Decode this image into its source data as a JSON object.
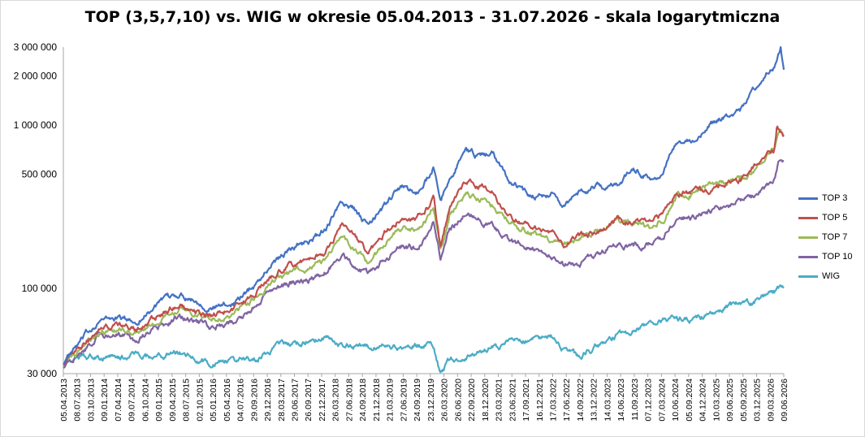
{
  "chart_data": {
    "type": "line",
    "title": "TOP (3,5,7,10) vs. WIG w okresie 05.04.2013 - 31.07.2026 - skala logarytmiczna",
    "xlabel": "",
    "ylabel": "",
    "y_scale": "log",
    "ylim": [
      30000,
      3000000
    ],
    "y_ticks": [
      30000,
      100000,
      500000,
      1000000,
      2000000,
      3000000
    ],
    "y_tick_labels": [
      "30 000",
      "100 000",
      "500 000",
      "1 000 000",
      "2 000 000",
      "3 000 000"
    ],
    "x_tick_labels": [
      "05.04.2013",
      "08.07.2013",
      "03.10.2013",
      "09.01.2014",
      "07.04.2014",
      "09.07.2014",
      "06.10.2014",
      "09.01.2015",
      "09.04.2015",
      "08.07.2015",
      "02.10.2015",
      "05.01.2016",
      "05.04.2016",
      "04.07.2016",
      "29.09.2016",
      "29.12.2016",
      "28.03.2017",
      "29.06.2017",
      "26.09.2017",
      "22.12.2017",
      "26.03.2018",
      "27.06.2018",
      "24.09.2018",
      "21.12.2018",
      "21.03.2019",
      "27.06.2019",
      "24.09.2019",
      "23.12.2019",
      "26.03.2020",
      "26.06.2020",
      "22.09.2020",
      "18.12.2020",
      "23.03.2021",
      "23.06.2021",
      "17.09.2021",
      "16.12.2021",
      "17.03.2022",
      "17.06.2022",
      "14.09.2022",
      "13.12.2022",
      "14.03.2023",
      "14.06.2023",
      "11.09.2023",
      "07.12.2023",
      "07.03.2024",
      "10.06.2024",
      "05.09.2024",
      "04.12.2024",
      "10.03.2025",
      "09.06.2025",
      "05.09.2025",
      "03.12.2025",
      "09.03.2026",
      "09.06.2026"
    ],
    "x_start": "05.04.2013",
    "x_end": "31.07.2026",
    "grid": false,
    "legend_position": "right",
    "series": [
      {
        "name": "TOP 3",
        "color": "#4472c4",
        "x": [
          2013.26,
          2013.6,
          2013.9,
          2014.3,
          2014.6,
          2015.0,
          2015.4,
          2015.6,
          2016.0,
          2016.4,
          2016.8,
          2017.2,
          2017.5,
          2017.9,
          2018.1,
          2018.4,
          2018.6,
          2018.9,
          2019.2,
          2019.5,
          2019.8,
          2020.0,
          2020.1,
          2020.23,
          2020.4,
          2020.7,
          2020.9,
          2021.2,
          2021.5,
          2021.9,
          2022.3,
          2022.5,
          2022.8,
          2023.2,
          2023.5,
          2023.8,
          2024.1,
          2024.35,
          2024.6,
          2024.9,
          2025.2,
          2025.5,
          2025.8,
          2026.0,
          2026.2,
          2026.4,
          2026.52,
          2026.58
        ],
        "values": [
          35000,
          48000,
          63000,
          66000,
          62000,
          80000,
          92000,
          88000,
          75000,
          82000,
          105000,
          150000,
          180000,
          200000,
          230000,
          330000,
          310000,
          240000,
          320000,
          420000,
          380000,
          480000,
          560000,
          330000,
          470000,
          700000,
          650000,
          660000,
          460000,
          370000,
          380000,
          320000,
          390000,
          420000,
          430000,
          550000,
          470000,
          510000,
          780000,
          800000,
          1000000,
          1150000,
          1250000,
          1600000,
          2000000,
          2300000,
          3000000,
          2200000
        ]
      },
      {
        "name": "TOP 5",
        "color": "#c0504d",
        "x": [
          2013.26,
          2013.6,
          2013.9,
          2014.3,
          2014.6,
          2015.0,
          2015.4,
          2015.6,
          2016.0,
          2016.4,
          2016.8,
          2017.2,
          2017.5,
          2017.9,
          2018.1,
          2018.4,
          2018.6,
          2018.9,
          2019.2,
          2019.5,
          2019.8,
          2020.0,
          2020.1,
          2020.23,
          2020.4,
          2020.7,
          2020.9,
          2021.2,
          2021.5,
          2021.9,
          2022.3,
          2022.5,
          2022.8,
          2023.2,
          2023.5,
          2023.8,
          2024.1,
          2024.35,
          2024.6,
          2024.9,
          2025.2,
          2025.5,
          2025.8,
          2026.0,
          2026.2,
          2026.4,
          2026.45,
          2026.58
        ],
        "values": [
          35000,
          44000,
          57000,
          60000,
          55000,
          68000,
          80000,
          76000,
          68000,
          75000,
          95000,
          125000,
          140000,
          155000,
          170000,
          245000,
          210000,
          160000,
          220000,
          270000,
          265000,
          310000,
          375000,
          180000,
          320000,
          460000,
          430000,
          380000,
          280000,
          240000,
          220000,
          175000,
          210000,
          220000,
          260000,
          255000,
          260000,
          280000,
          380000,
          385000,
          400000,
          440000,
          460000,
          560000,
          600000,
          700000,
          980000,
          850000
        ]
      },
      {
        "name": "TOP 7",
        "color": "#9bbb59",
        "x": [
          2013.26,
          2013.6,
          2013.9,
          2014.3,
          2014.6,
          2015.0,
          2015.4,
          2015.6,
          2016.0,
          2016.4,
          2016.8,
          2017.2,
          2017.5,
          2017.9,
          2018.1,
          2018.4,
          2018.6,
          2018.9,
          2019.2,
          2019.5,
          2019.8,
          2020.0,
          2020.1,
          2020.23,
          2020.4,
          2020.7,
          2020.9,
          2021.2,
          2021.5,
          2021.9,
          2022.3,
          2022.5,
          2022.8,
          2023.2,
          2023.5,
          2023.8,
          2024.1,
          2024.35,
          2024.6,
          2024.9,
          2025.2,
          2025.5,
          2025.8,
          2026.0,
          2026.2,
          2026.4,
          2026.5,
          2026.58
        ],
        "values": [
          34000,
          42000,
          54000,
          55000,
          52000,
          64000,
          74000,
          72000,
          64000,
          70000,
          88000,
          115000,
          125000,
          135000,
          148000,
          210000,
          180000,
          140000,
          190000,
          230000,
          225000,
          265000,
          320000,
          170000,
          280000,
          380000,
          360000,
          320000,
          250000,
          220000,
          200000,
          180000,
          200000,
          230000,
          265000,
          250000,
          240000,
          260000,
          370000,
          380000,
          430000,
          440000,
          480000,
          510000,
          620000,
          750000,
          920000,
          880000
        ]
      },
      {
        "name": "TOP 10",
        "color": "#8064a2",
        "x": [
          2013.26,
          2013.6,
          2013.9,
          2014.3,
          2014.6,
          2015.0,
          2015.4,
          2015.6,
          2016.0,
          2016.4,
          2016.8,
          2017.2,
          2017.5,
          2017.9,
          2018.1,
          2018.4,
          2018.6,
          2018.9,
          2019.2,
          2019.5,
          2019.8,
          2020.0,
          2020.1,
          2020.23,
          2020.4,
          2020.7,
          2020.9,
          2021.2,
          2021.5,
          2021.9,
          2022.3,
          2022.5,
          2022.8,
          2023.2,
          2023.5,
          2023.8,
          2024.1,
          2024.35,
          2024.6,
          2024.9,
          2025.2,
          2025.5,
          2025.8,
          2026.0,
          2026.2,
          2026.4,
          2026.5,
          2026.58
        ],
        "values": [
          33000,
          40000,
          51000,
          52000,
          48000,
          58000,
          67000,
          65000,
          57000,
          63000,
          78000,
          100000,
          108000,
          115000,
          125000,
          160000,
          140000,
          120000,
          150000,
          180000,
          180000,
          210000,
          260000,
          150000,
          230000,
          280000,
          270000,
          240000,
          195000,
          175000,
          155000,
          140000,
          140000,
          165000,
          190000,
          180000,
          185000,
          200000,
          270000,
          275000,
          300000,
          320000,
          340000,
          360000,
          400000,
          480000,
          620000,
          580000
        ]
      },
      {
        "name": "WIG",
        "color": "#4bacc6",
        "x": [
          2013.26,
          2013.6,
          2013.9,
          2014.3,
          2014.6,
          2015.0,
          2015.4,
          2015.6,
          2016.0,
          2016.4,
          2016.8,
          2017.2,
          2017.5,
          2017.9,
          2018.1,
          2018.4,
          2018.6,
          2018.9,
          2019.2,
          2019.5,
          2019.8,
          2020.0,
          2020.1,
          2020.23,
          2020.4,
          2020.7,
          2020.9,
          2021.2,
          2021.5,
          2021.9,
          2022.3,
          2022.5,
          2022.8,
          2023.2,
          2023.5,
          2023.8,
          2024.1,
          2024.35,
          2024.6,
          2024.9,
          2025.2,
          2025.5,
          2025.8,
          2026.0,
          2026.2,
          2026.4,
          2026.5,
          2026.58
        ],
        "values": [
          35000,
          38000,
          38000,
          37500,
          38500,
          38000,
          40000,
          38000,
          34000,
          36000,
          37000,
          44000,
          46000,
          48000,
          50000,
          45000,
          44000,
          44000,
          45000,
          44000,
          45000,
          45000,
          44000,
          30000,
          36000,
          39000,
          40000,
          43000,
          46000,
          48000,
          50000,
          42000,
          38000,
          45000,
          52000,
          55000,
          62000,
          65000,
          65000,
          62000,
          70000,
          78000,
          80000,
          82000,
          90000,
          95000,
          98000,
          100000
        ]
      }
    ]
  }
}
